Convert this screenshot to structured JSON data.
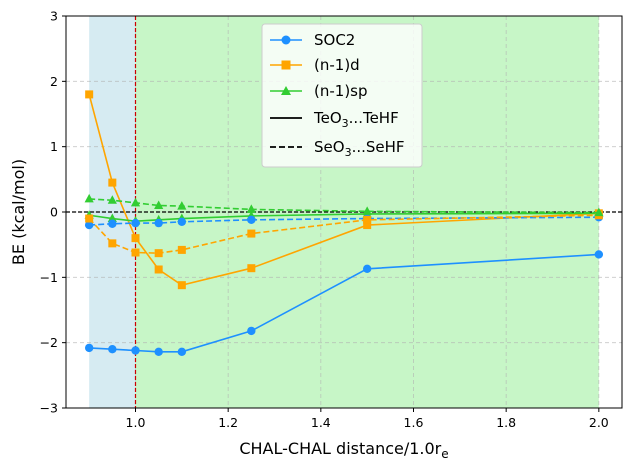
{
  "chart_data": {
    "type": "line",
    "xlabel_text": "CHAL-CHAL distance/1.0r",
    "xlabel_sub": "e",
    "ylabel": "BE (kcal/mol)",
    "xlim": [
      0.85,
      2.05
    ],
    "ylim": [
      -3,
      3
    ],
    "xticks": [
      1.0,
      1.2,
      1.4,
      1.6,
      1.8,
      2.0
    ],
    "xtick_labels": [
      "1.0",
      "1.2",
      "1.4",
      "1.6",
      "1.8",
      "2.0"
    ],
    "yticks": [
      -3,
      -2,
      -1,
      0,
      1,
      2,
      3
    ],
    "ytick_labels": [
      "−3",
      "−2",
      "−1",
      "0",
      "1",
      "2",
      "3"
    ],
    "grid": true,
    "legend_position": "upper-center",
    "shaded_regions": [
      {
        "x_start": 0.9,
        "x_end": 1.0,
        "color": "#add8e6",
        "opacity": 0.5
      },
      {
        "x_start": 1.0,
        "x_end": 2.0,
        "color": "#90ee90",
        "opacity": 0.5
      }
    ],
    "vertical_line": {
      "x": 1.0,
      "color": "#cc0000",
      "style": "dashed"
    },
    "horizontal_line": {
      "y": 0,
      "color": "#000000",
      "style": "dashed"
    },
    "x": [
      0.9,
      0.95,
      1.0,
      1.05,
      1.1,
      1.25,
      1.5,
      2.0
    ],
    "series": [
      {
        "name": "SOC2 TeO3...TeHF",
        "method": "SOC2",
        "system": "TeO3...TeHF",
        "color": "#1e90ff",
        "marker": "circle",
        "style": "solid",
        "values": [
          -2.08,
          -2.1,
          -2.12,
          -2.14,
          -2.14,
          -1.82,
          -0.87,
          -0.65
        ]
      },
      {
        "name": "(n-1)d TeO3...TeHF",
        "method": "(n-1)d",
        "system": "TeO3...TeHF",
        "color": "#ffa500",
        "marker": "square",
        "style": "solid",
        "values": [
          1.8,
          0.45,
          -0.4,
          -0.88,
          -1.12,
          -0.86,
          -0.2,
          -0.02
        ]
      },
      {
        "name": "(n-1)sp TeO3...TeHF",
        "method": "(n-1)sp",
        "system": "TeO3...TeHF",
        "color": "#32cd32",
        "marker": "triangle",
        "style": "solid",
        "values": [
          -0.05,
          -0.1,
          -0.14,
          -0.12,
          -0.1,
          -0.06,
          -0.03,
          -0.02
        ]
      },
      {
        "name": "SOC2 SeO3...SeHF",
        "method": "SOC2",
        "system": "SeO3...SeHF",
        "color": "#1e90ff",
        "marker": "circle",
        "style": "dashed",
        "values": [
          -0.2,
          -0.18,
          -0.17,
          -0.17,
          -0.15,
          -0.12,
          -0.1,
          -0.08
        ]
      },
      {
        "name": "(n-1)d SeO3...SeHF",
        "method": "(n-1)d",
        "system": "SeO3...SeHF",
        "color": "#ffa500",
        "marker": "square",
        "style": "dashed",
        "values": [
          -0.1,
          -0.48,
          -0.62,
          -0.63,
          -0.58,
          -0.33,
          -0.12,
          -0.05
        ]
      },
      {
        "name": "(n-1)sp SeO3...SeHF",
        "method": "(n-1)sp",
        "system": "SeO3...SeHF",
        "color": "#32cd32",
        "marker": "triangle",
        "style": "dashed",
        "values": [
          0.2,
          0.18,
          0.14,
          0.1,
          0.09,
          0.04,
          0.01,
          -0.01
        ]
      }
    ],
    "legend": {
      "entries": [
        {
          "label": "SOC2",
          "color": "#1e90ff",
          "marker": "circle",
          "style": "solid"
        },
        {
          "label": "(n-1)d",
          "color": "#ffa500",
          "marker": "square",
          "style": "solid"
        },
        {
          "label": "(n-1)sp",
          "color": "#32cd32",
          "marker": "triangle",
          "style": "solid"
        },
        {
          "label_main": "TeO",
          "label_sub": "3",
          "label_rest": "...TeHF",
          "color": "#000000",
          "marker": "none",
          "style": "solid"
        },
        {
          "label_main": "SeO",
          "label_sub": "3",
          "label_rest": "...SeHF",
          "color": "#000000",
          "marker": "none",
          "style": "dashed"
        }
      ]
    }
  }
}
